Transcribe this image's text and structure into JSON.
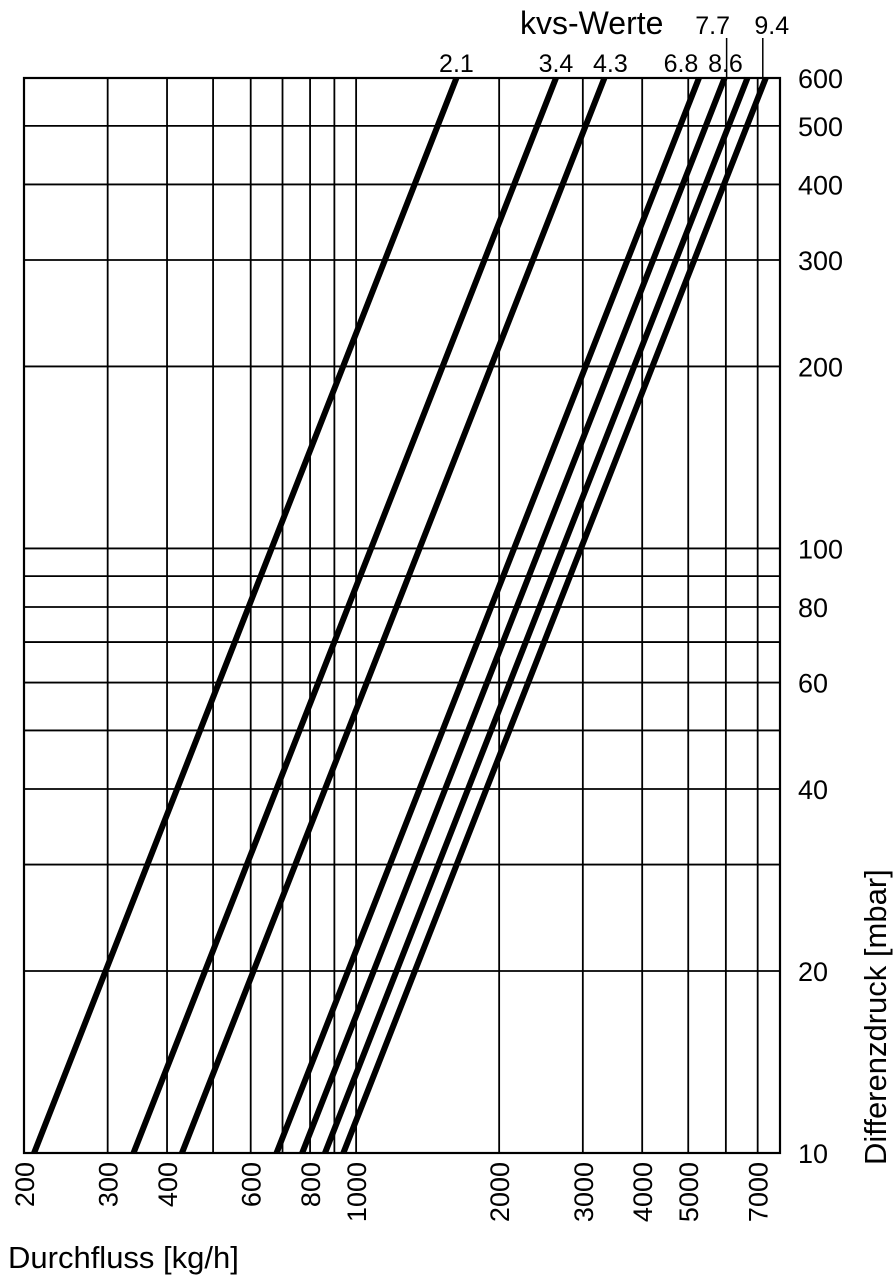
{
  "chart_data": {
    "type": "line",
    "title": "kvs-Werte",
    "xlabel": "Durchfluss [kg/h]",
    "ylabel": "Differenzdruck [mbar]",
    "x_scale": "log",
    "y_scale": "log",
    "xlim": [
      200,
      7800
    ],
    "ylim": [
      10,
      600
    ],
    "x_ticks": [
      200,
      300,
      400,
      600,
      800,
      1000,
      2000,
      3000,
      4000,
      5000,
      7000
    ],
    "x_grid": [
      200,
      300,
      400,
      500,
      600,
      700,
      800,
      900,
      1000,
      2000,
      3000,
      4000,
      5000,
      6000,
      7000
    ],
    "y_ticks": [
      10,
      20,
      40,
      60,
      80,
      100,
      200,
      300,
      400,
      500,
      600
    ],
    "y_grid": [
      10,
      20,
      30,
      40,
      50,
      60,
      70,
      80,
      90,
      100,
      200,
      300,
      400,
      500,
      600
    ],
    "grid": true,
    "series": [
      {
        "name": "2.1",
        "kvs": 2.1,
        "x": [
          210,
          1626
        ],
        "y": [
          10,
          600
        ]
      },
      {
        "name": "3.4",
        "kvs": 3.4,
        "x": [
          340,
          2634
        ],
        "y": [
          10,
          600
        ]
      },
      {
        "name": "4.3",
        "kvs": 4.3,
        "x": [
          430,
          3331
        ],
        "y": [
          10,
          600
        ]
      },
      {
        "name": "6.8",
        "kvs": 6.8,
        "x": [
          680,
          5267
        ],
        "y": [
          10,
          600
        ]
      },
      {
        "name": "7.7",
        "kvs": 7.7,
        "x": [
          770,
          5964
        ],
        "y": [
          10,
          600
        ]
      },
      {
        "name": "8.6",
        "kvs": 8.6,
        "x": [
          860,
          6662
        ],
        "y": [
          10,
          600
        ]
      },
      {
        "name": "9.4",
        "kvs": 9.4,
        "x": [
          940,
          7281
        ],
        "y": [
          10,
          600
        ]
      }
    ]
  }
}
